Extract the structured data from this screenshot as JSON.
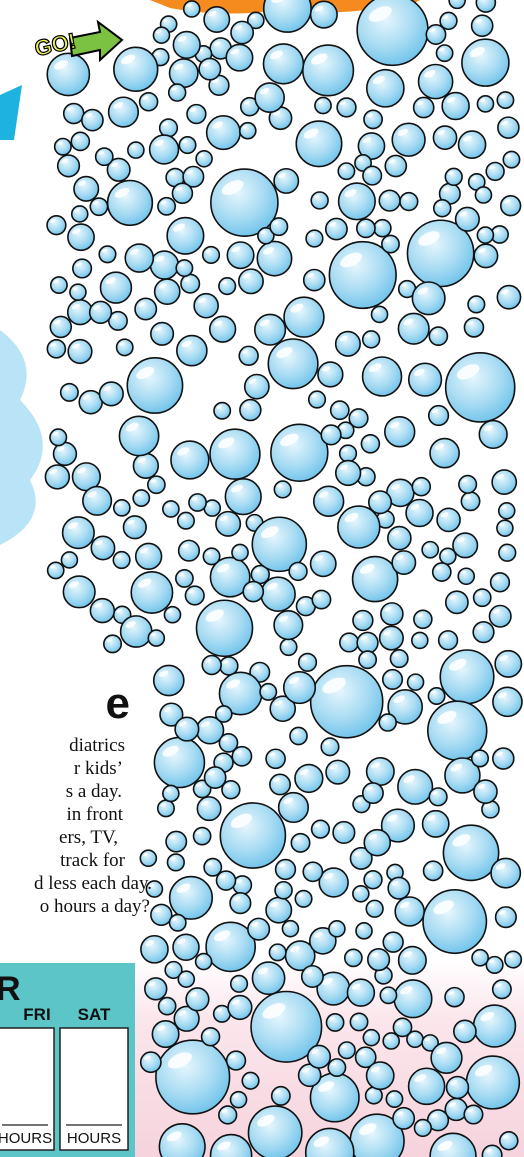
{
  "go_label": "GO!",
  "heading_fragment": "e",
  "paragraph_lines": [
    "diatrics",
    "r kids’",
    "s a day.",
    "in front",
    "ers, TV,",
    "track for",
    "d less each day.",
    "o hours a day?"
  ],
  "tracker": {
    "title_fragment": "R",
    "days": [
      {
        "label": "FRI",
        "unit": "HOURS"
      },
      {
        "label": "SAT",
        "unit": "HOURS"
      }
    ]
  }
}
